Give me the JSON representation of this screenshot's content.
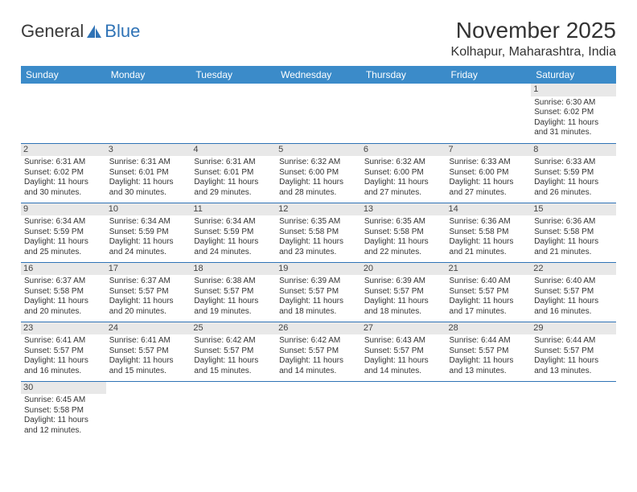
{
  "logo": {
    "text1": "General",
    "text2": "Blue"
  },
  "title": "November 2025",
  "location": "Kolhapur, Maharashtra, India",
  "colors": {
    "header_bg": "#3b8bc9",
    "row_border": "#2f73b6",
    "daynum_bg": "#e8e8e8",
    "page_bg": "#ffffff",
    "text": "#333333"
  },
  "fonts": {
    "title_size": 28,
    "location_size": 16,
    "header_size": 12,
    "cell_size": 10
  },
  "week_header": [
    "Sunday",
    "Monday",
    "Tuesday",
    "Wednesday",
    "Thursday",
    "Friday",
    "Saturday"
  ],
  "leading_blanks": 6,
  "days": [
    {
      "n": 1,
      "sunrise": "6:30 AM",
      "sunset": "6:02 PM",
      "day_h": 11,
      "day_m": 31
    },
    {
      "n": 2,
      "sunrise": "6:31 AM",
      "sunset": "6:02 PM",
      "day_h": 11,
      "day_m": 30
    },
    {
      "n": 3,
      "sunrise": "6:31 AM",
      "sunset": "6:01 PM",
      "day_h": 11,
      "day_m": 30
    },
    {
      "n": 4,
      "sunrise": "6:31 AM",
      "sunset": "6:01 PM",
      "day_h": 11,
      "day_m": 29
    },
    {
      "n": 5,
      "sunrise": "6:32 AM",
      "sunset": "6:00 PM",
      "day_h": 11,
      "day_m": 28
    },
    {
      "n": 6,
      "sunrise": "6:32 AM",
      "sunset": "6:00 PM",
      "day_h": 11,
      "day_m": 27
    },
    {
      "n": 7,
      "sunrise": "6:33 AM",
      "sunset": "6:00 PM",
      "day_h": 11,
      "day_m": 27
    },
    {
      "n": 8,
      "sunrise": "6:33 AM",
      "sunset": "5:59 PM",
      "day_h": 11,
      "day_m": 26
    },
    {
      "n": 9,
      "sunrise": "6:34 AM",
      "sunset": "5:59 PM",
      "day_h": 11,
      "day_m": 25
    },
    {
      "n": 10,
      "sunrise": "6:34 AM",
      "sunset": "5:59 PM",
      "day_h": 11,
      "day_m": 24
    },
    {
      "n": 11,
      "sunrise": "6:34 AM",
      "sunset": "5:59 PM",
      "day_h": 11,
      "day_m": 24
    },
    {
      "n": 12,
      "sunrise": "6:35 AM",
      "sunset": "5:58 PM",
      "day_h": 11,
      "day_m": 23
    },
    {
      "n": 13,
      "sunrise": "6:35 AM",
      "sunset": "5:58 PM",
      "day_h": 11,
      "day_m": 22
    },
    {
      "n": 14,
      "sunrise": "6:36 AM",
      "sunset": "5:58 PM",
      "day_h": 11,
      "day_m": 21
    },
    {
      "n": 15,
      "sunrise": "6:36 AM",
      "sunset": "5:58 PM",
      "day_h": 11,
      "day_m": 21
    },
    {
      "n": 16,
      "sunrise": "6:37 AM",
      "sunset": "5:58 PM",
      "day_h": 11,
      "day_m": 20
    },
    {
      "n": 17,
      "sunrise": "6:37 AM",
      "sunset": "5:57 PM",
      "day_h": 11,
      "day_m": 20
    },
    {
      "n": 18,
      "sunrise": "6:38 AM",
      "sunset": "5:57 PM",
      "day_h": 11,
      "day_m": 19
    },
    {
      "n": 19,
      "sunrise": "6:39 AM",
      "sunset": "5:57 PM",
      "day_h": 11,
      "day_m": 18
    },
    {
      "n": 20,
      "sunrise": "6:39 AM",
      "sunset": "5:57 PM",
      "day_h": 11,
      "day_m": 18
    },
    {
      "n": 21,
      "sunrise": "6:40 AM",
      "sunset": "5:57 PM",
      "day_h": 11,
      "day_m": 17
    },
    {
      "n": 22,
      "sunrise": "6:40 AM",
      "sunset": "5:57 PM",
      "day_h": 11,
      "day_m": 16
    },
    {
      "n": 23,
      "sunrise": "6:41 AM",
      "sunset": "5:57 PM",
      "day_h": 11,
      "day_m": 16
    },
    {
      "n": 24,
      "sunrise": "6:41 AM",
      "sunset": "5:57 PM",
      "day_h": 11,
      "day_m": 15
    },
    {
      "n": 25,
      "sunrise": "6:42 AM",
      "sunset": "5:57 PM",
      "day_h": 11,
      "day_m": 15
    },
    {
      "n": 26,
      "sunrise": "6:42 AM",
      "sunset": "5:57 PM",
      "day_h": 11,
      "day_m": 14
    },
    {
      "n": 27,
      "sunrise": "6:43 AM",
      "sunset": "5:57 PM",
      "day_h": 11,
      "day_m": 14
    },
    {
      "n": 28,
      "sunrise": "6:44 AM",
      "sunset": "5:57 PM",
      "day_h": 11,
      "day_m": 13
    },
    {
      "n": 29,
      "sunrise": "6:44 AM",
      "sunset": "5:57 PM",
      "day_h": 11,
      "day_m": 13
    },
    {
      "n": 30,
      "sunrise": "6:45 AM",
      "sunset": "5:58 PM",
      "day_h": 11,
      "day_m": 12
    }
  ],
  "labels": {
    "sunrise": "Sunrise:",
    "sunset": "Sunset:",
    "daylight_fmt": "Daylight: {h} hours and {m} minutes."
  }
}
